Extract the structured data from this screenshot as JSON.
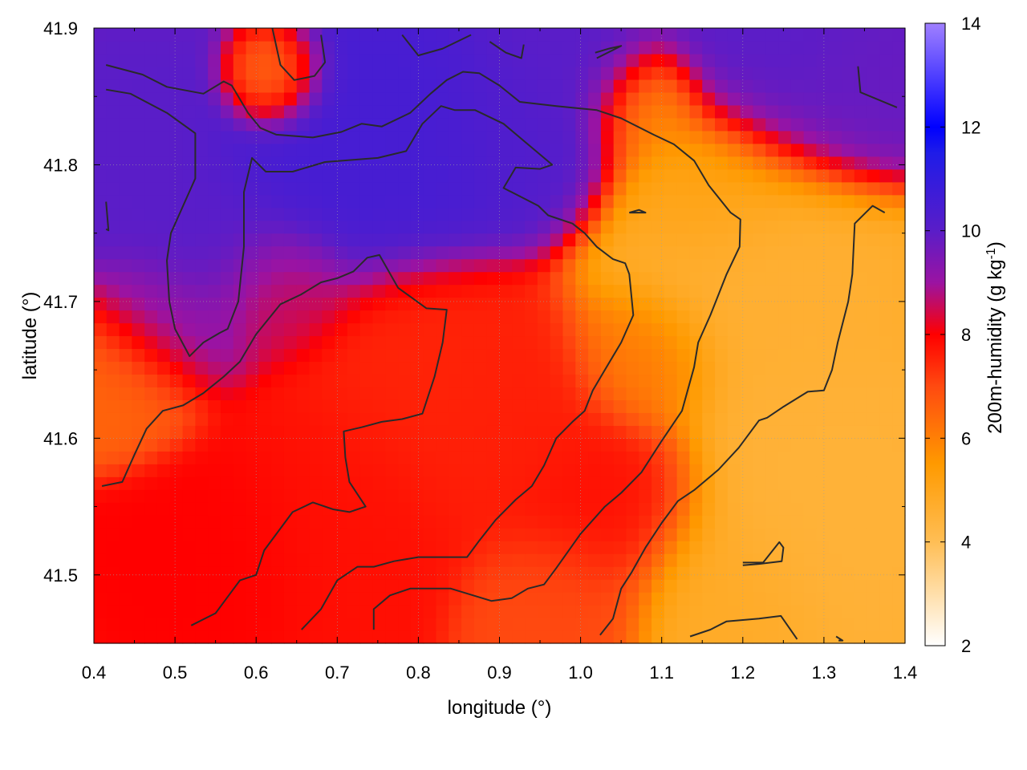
{
  "chart_data": {
    "type": "heatmap",
    "title": "",
    "xlabel": "longitude (°)",
    "ylabel": "latitude (°)",
    "colorbar_label_base": "200m-humidity (g kg",
    "colorbar_label_sup": "-1",
    "colorbar_label_end": ")",
    "xlim": [
      0.4,
      1.4
    ],
    "ylim": [
      41.45,
      41.9
    ],
    "zlim": [
      2,
      14
    ],
    "x_ticks": [
      "0.4",
      "0.5",
      "0.6",
      "0.7",
      "0.8",
      "0.9",
      "1.0",
      "1.1",
      "1.2",
      "1.3",
      "1.4"
    ],
    "x_tick_values": [
      0.4,
      0.5,
      0.6,
      0.7,
      0.8,
      0.9,
      1.0,
      1.1,
      1.2,
      1.3,
      1.4
    ],
    "y_ticks": [
      "41.5",
      "41.6",
      "41.7",
      "41.8",
      "41.9"
    ],
    "y_tick_values": [
      41.5,
      41.6,
      41.7,
      41.8,
      41.9
    ],
    "colorbar_ticks": [
      "2",
      "4",
      "6",
      "8",
      "10",
      "12",
      "14"
    ],
    "colorbar_tick_values": [
      2,
      4,
      6,
      8,
      10,
      12,
      14
    ],
    "grid": true,
    "palette": [
      {
        "v": 2,
        "color": "#ffffff"
      },
      {
        "v": 4,
        "color": "#ffbe55"
      },
      {
        "v": 5.5,
        "color": "#ff9a00"
      },
      {
        "v": 7,
        "color": "#ff4a10"
      },
      {
        "v": 8,
        "color": "#ff0000"
      },
      {
        "v": 9,
        "color": "#9b13a2"
      },
      {
        "v": 10,
        "color": "#5a1dc8"
      },
      {
        "v": 11.5,
        "color": "#1f1ce8"
      },
      {
        "v": 12,
        "color": "#0000ff"
      },
      {
        "v": 14,
        "color": "#a080ff"
      }
    ],
    "field_nodes": [
      {
        "x": 0.45,
        "y": 41.82,
        "v": 10.0,
        "r": 0.08
      },
      {
        "x": 0.55,
        "y": 41.75,
        "v": 10.0,
        "r": 0.07
      },
      {
        "x": 0.68,
        "y": 41.8,
        "v": 10.5,
        "r": 0.1
      },
      {
        "x": 0.8,
        "y": 41.81,
        "v": 10.5,
        "r": 0.09
      },
      {
        "x": 0.93,
        "y": 41.82,
        "v": 10.2,
        "r": 0.08
      },
      {
        "x": 1.0,
        "y": 41.87,
        "v": 10.0,
        "r": 0.07
      },
      {
        "x": 1.25,
        "y": 41.88,
        "v": 10.0,
        "r": 0.1
      },
      {
        "x": 1.35,
        "y": 41.86,
        "v": 9.8,
        "r": 0.07
      },
      {
        "x": 0.5,
        "y": 41.68,
        "v": 9.2,
        "r": 0.06
      },
      {
        "x": 0.63,
        "y": 41.71,
        "v": 8.5,
        "r": 0.06
      },
      {
        "x": 0.8,
        "y": 41.64,
        "v": 7.5,
        "r": 0.1
      },
      {
        "x": 0.9,
        "y": 41.62,
        "v": 7.6,
        "r": 0.1
      },
      {
        "x": 0.7,
        "y": 41.56,
        "v": 7.8,
        "r": 0.1
      },
      {
        "x": 0.55,
        "y": 41.53,
        "v": 8.0,
        "r": 0.08
      },
      {
        "x": 1.03,
        "y": 41.55,
        "v": 7.8,
        "r": 0.08
      },
      {
        "x": 0.45,
        "y": 41.64,
        "v": 6.5,
        "r": 0.06
      },
      {
        "x": 0.62,
        "y": 41.86,
        "v": 6.0,
        "r": 0.04
      },
      {
        "x": 1.08,
        "y": 41.84,
        "v": 5.6,
        "r": 0.05
      },
      {
        "x": 1.2,
        "y": 41.72,
        "v": 4.6,
        "r": 0.12
      },
      {
        "x": 1.3,
        "y": 41.55,
        "v": 4.5,
        "r": 0.12
      },
      {
        "x": 1.18,
        "y": 41.48,
        "v": 4.8,
        "r": 0.08
      },
      {
        "x": 1.15,
        "y": 41.78,
        "v": 5.2,
        "r": 0.07
      },
      {
        "x": 1.08,
        "y": 41.66,
        "v": 6.2,
        "r": 0.06
      },
      {
        "x": 0.98,
        "y": 41.48,
        "v": 7.0,
        "r": 0.07
      }
    ],
    "contours": [
      [
        [
          0.415,
          41.873
        ],
        [
          0.46,
          41.866
        ],
        [
          0.49,
          41.857
        ],
        [
          0.535,
          41.852
        ],
        [
          0.56,
          41.861
        ],
        [
          0.57,
          41.858
        ],
        [
          0.59,
          41.838
        ],
        [
          0.605,
          41.827
        ],
        [
          0.625,
          41.822
        ],
        [
          0.67,
          41.82
        ],
        [
          0.705,
          41.824
        ],
        [
          0.73,
          41.83
        ],
        [
          0.755,
          41.828
        ],
        [
          0.79,
          41.838
        ],
        [
          0.815,
          41.852
        ],
        [
          0.835,
          41.862
        ],
        [
          0.855,
          41.868
        ],
        [
          0.875,
          41.867
        ],
        [
          0.9,
          41.858
        ],
        [
          0.925,
          41.846
        ],
        [
          0.97,
          41.843
        ],
        [
          1.02,
          41.84
        ],
        [
          1.05,
          41.834
        ],
        [
          1.09,
          41.822
        ],
        [
          1.115,
          41.815
        ],
        [
          1.14,
          41.803
        ],
        [
          1.158,
          41.785
        ],
        [
          1.185,
          41.765
        ],
        [
          1.197,
          41.76
        ],
        [
          1.196,
          41.74
        ],
        [
          1.18,
          41.72
        ],
        [
          1.16,
          41.69
        ],
        [
          1.145,
          41.67
        ],
        [
          1.14,
          41.652
        ],
        [
          1.125,
          41.62
        ],
        [
          1.1,
          41.598
        ],
        [
          1.075,
          41.575
        ],
        [
          1.05,
          41.56
        ],
        [
          1.03,
          41.55
        ],
        [
          1.0,
          41.53
        ],
        [
          0.97,
          41.505
        ],
        [
          0.955,
          41.493
        ],
        [
          0.935,
          41.49
        ],
        [
          0.915,
          41.483
        ],
        [
          0.89,
          41.481
        ],
        [
          0.84,
          41.49
        ],
        [
          0.79,
          41.49
        ],
        [
          0.765,
          41.485
        ],
        [
          0.745,
          41.475
        ],
        [
          0.745,
          41.46
        ]
      ],
      [
        [
          0.415,
          41.855
        ],
        [
          0.445,
          41.852
        ],
        [
          0.49,
          41.838
        ],
        [
          0.525,
          41.823
        ],
        [
          0.525,
          41.79
        ],
        [
          0.51,
          41.77
        ],
        [
          0.495,
          41.75
        ],
        [
          0.49,
          41.73
        ],
        [
          0.493,
          41.7
        ],
        [
          0.5,
          41.68
        ],
        [
          0.518,
          41.66
        ],
        [
          0.535,
          41.67
        ],
        [
          0.555,
          41.677
        ],
        [
          0.565,
          41.68
        ],
        [
          0.578,
          41.7
        ],
        [
          0.585,
          41.74
        ],
        [
          0.585,
          41.78
        ],
        [
          0.595,
          41.805
        ],
        [
          0.612,
          41.795
        ],
        [
          0.645,
          41.795
        ],
        [
          0.685,
          41.802
        ],
        [
          0.75,
          41.805
        ],
        [
          0.785,
          41.81
        ],
        [
          0.805,
          41.83
        ],
        [
          0.828,
          41.843
        ],
        [
          0.845,
          41.84
        ],
        [
          0.87,
          41.84
        ],
        [
          0.905,
          41.83
        ],
        [
          0.935,
          41.815
        ],
        [
          0.965,
          41.8
        ],
        [
          0.95,
          41.797
        ],
        [
          0.92,
          41.798
        ],
        [
          0.905,
          41.783
        ],
        [
          0.948,
          41.77
        ],
        [
          0.96,
          41.763
        ],
        [
          0.99,
          41.757
        ],
        [
          1.005,
          41.75
        ],
        [
          1.02,
          41.74
        ],
        [
          1.04,
          41.731
        ],
        [
          1.055,
          41.728
        ],
        [
          1.06,
          41.72
        ],
        [
          1.065,
          41.69
        ],
        [
          1.05,
          41.67
        ],
        [
          1.03,
          41.65
        ],
        [
          1.015,
          41.635
        ],
        [
          1.005,
          41.62
        ],
        [
          0.99,
          41.612
        ],
        [
          0.97,
          41.6
        ],
        [
          0.955,
          41.58
        ],
        [
          0.94,
          41.565
        ],
        [
          0.92,
          41.555
        ],
        [
          0.895,
          41.54
        ],
        [
          0.875,
          41.525
        ],
        [
          0.86,
          41.513
        ],
        [
          0.845,
          41.513
        ],
        [
          0.8,
          41.513
        ],
        [
          0.77,
          41.51
        ],
        [
          0.745,
          41.506
        ],
        [
          0.725,
          41.506
        ],
        [
          0.7,
          41.496
        ],
        [
          0.68,
          41.475
        ],
        [
          0.656,
          41.46
        ]
      ],
      [
        [
          0.415,
          41.773
        ],
        [
          0.418,
          41.752
        ],
        [
          0.415,
          41.753
        ]
      ],
      [
        [
          0.41,
          41.565
        ],
        [
          0.435,
          41.568
        ],
        [
          0.45,
          41.588
        ],
        [
          0.465,
          41.607
        ],
        [
          0.485,
          41.62
        ],
        [
          0.51,
          41.624
        ],
        [
          0.535,
          41.633
        ],
        [
          0.56,
          41.645
        ],
        [
          0.58,
          41.656
        ],
        [
          0.6,
          41.676
        ],
        [
          0.63,
          41.698
        ],
        [
          0.655,
          41.705
        ],
        [
          0.68,
          41.714
        ],
        [
          0.7,
          41.717
        ],
        [
          0.72,
          41.722
        ],
        [
          0.737,
          41.732
        ],
        [
          0.752,
          41.734
        ],
        [
          0.775,
          41.71
        ],
        [
          0.81,
          41.695
        ],
        [
          0.835,
          41.694
        ],
        [
          0.83,
          41.67
        ],
        [
          0.82,
          41.645
        ],
        [
          0.805,
          41.618
        ],
        [
          0.78,
          41.614
        ],
        [
          0.755,
          41.612
        ],
        [
          0.73,
          41.608
        ],
        [
          0.708,
          41.605
        ],
        [
          0.71,
          41.586
        ],
        [
          0.715,
          41.568
        ],
        [
          0.735,
          41.55
        ],
        [
          0.715,
          41.546
        ],
        [
          0.695,
          41.548
        ],
        [
          0.67,
          41.553
        ],
        [
          0.645,
          41.546
        ],
        [
          0.625,
          41.53
        ],
        [
          0.61,
          41.518
        ],
        [
          0.6,
          41.5
        ],
        [
          0.58,
          41.496
        ],
        [
          0.57,
          41.488
        ],
        [
          0.55,
          41.472
        ],
        [
          0.52,
          41.463
        ]
      ],
      [
        [
          1.135,
          41.455
        ],
        [
          1.16,
          41.46
        ],
        [
          1.18,
          41.466
        ],
        [
          1.22,
          41.468
        ],
        [
          1.247,
          41.47
        ],
        [
          1.267,
          41.453
        ]
      ],
      [
        [
          1.2,
          41.507
        ],
        [
          1.22,
          41.508
        ],
        [
          1.248,
          41.51
        ],
        [
          1.25,
          41.52
        ],
        [
          1.245,
          41.524
        ],
        [
          1.225,
          41.509
        ],
        [
          1.2,
          41.509
        ]
      ],
      [
        [
          1.024,
          41.456
        ],
        [
          1.04,
          41.468
        ],
        [
          1.05,
          41.49
        ],
        [
          1.063,
          41.502
        ],
        [
          1.08,
          41.52
        ],
        [
          1.1,
          41.538
        ],
        [
          1.12,
          41.554
        ],
        [
          1.14,
          41.562
        ],
        [
          1.17,
          41.577
        ],
        [
          1.195,
          41.593
        ],
        [
          1.22,
          41.613
        ],
        [
          1.23,
          41.615
        ],
        [
          1.25,
          41.623
        ],
        [
          1.28,
          41.634
        ],
        [
          1.3,
          41.635
        ],
        [
          1.31,
          41.65
        ],
        [
          1.317,
          41.67
        ],
        [
          1.33,
          41.7
        ],
        [
          1.335,
          41.72
        ],
        [
          1.338,
          41.757
        ],
        [
          1.36,
          41.77
        ],
        [
          1.375,
          41.765
        ]
      ],
      [
        [
          1.342,
          41.872
        ],
        [
          1.345,
          41.853
        ],
        [
          1.39,
          41.842
        ]
      ],
      [
        [
          1.06,
          41.765
        ],
        [
          1.072,
          41.767
        ],
        [
          1.08,
          41.765
        ],
        [
          1.06,
          41.765
        ]
      ],
      [
        [
          0.62,
          41.9
        ],
        [
          0.63,
          41.873
        ],
        [
          0.647,
          41.862
        ],
        [
          0.672,
          41.865
        ],
        [
          0.685,
          41.875
        ],
        [
          0.68,
          41.895
        ]
      ],
      [
        [
          0.78,
          41.895
        ],
        [
          0.8,
          41.88
        ],
        [
          0.83,
          41.885
        ],
        [
          0.865,
          41.895
        ]
      ],
      [
        [
          0.888,
          41.89
        ],
        [
          0.908,
          41.882
        ],
        [
          0.927,
          41.878
        ],
        [
          0.93,
          41.888
        ]
      ],
      [
        [
          1.018,
          41.882
        ],
        [
          1.035,
          41.885
        ],
        [
          1.05,
          41.887
        ],
        [
          1.02,
          41.878
        ]
      ],
      [
        [
          1.315,
          41.455
        ],
        [
          1.323,
          41.452
        ],
        [
          1.318,
          41.452
        ]
      ]
    ]
  }
}
